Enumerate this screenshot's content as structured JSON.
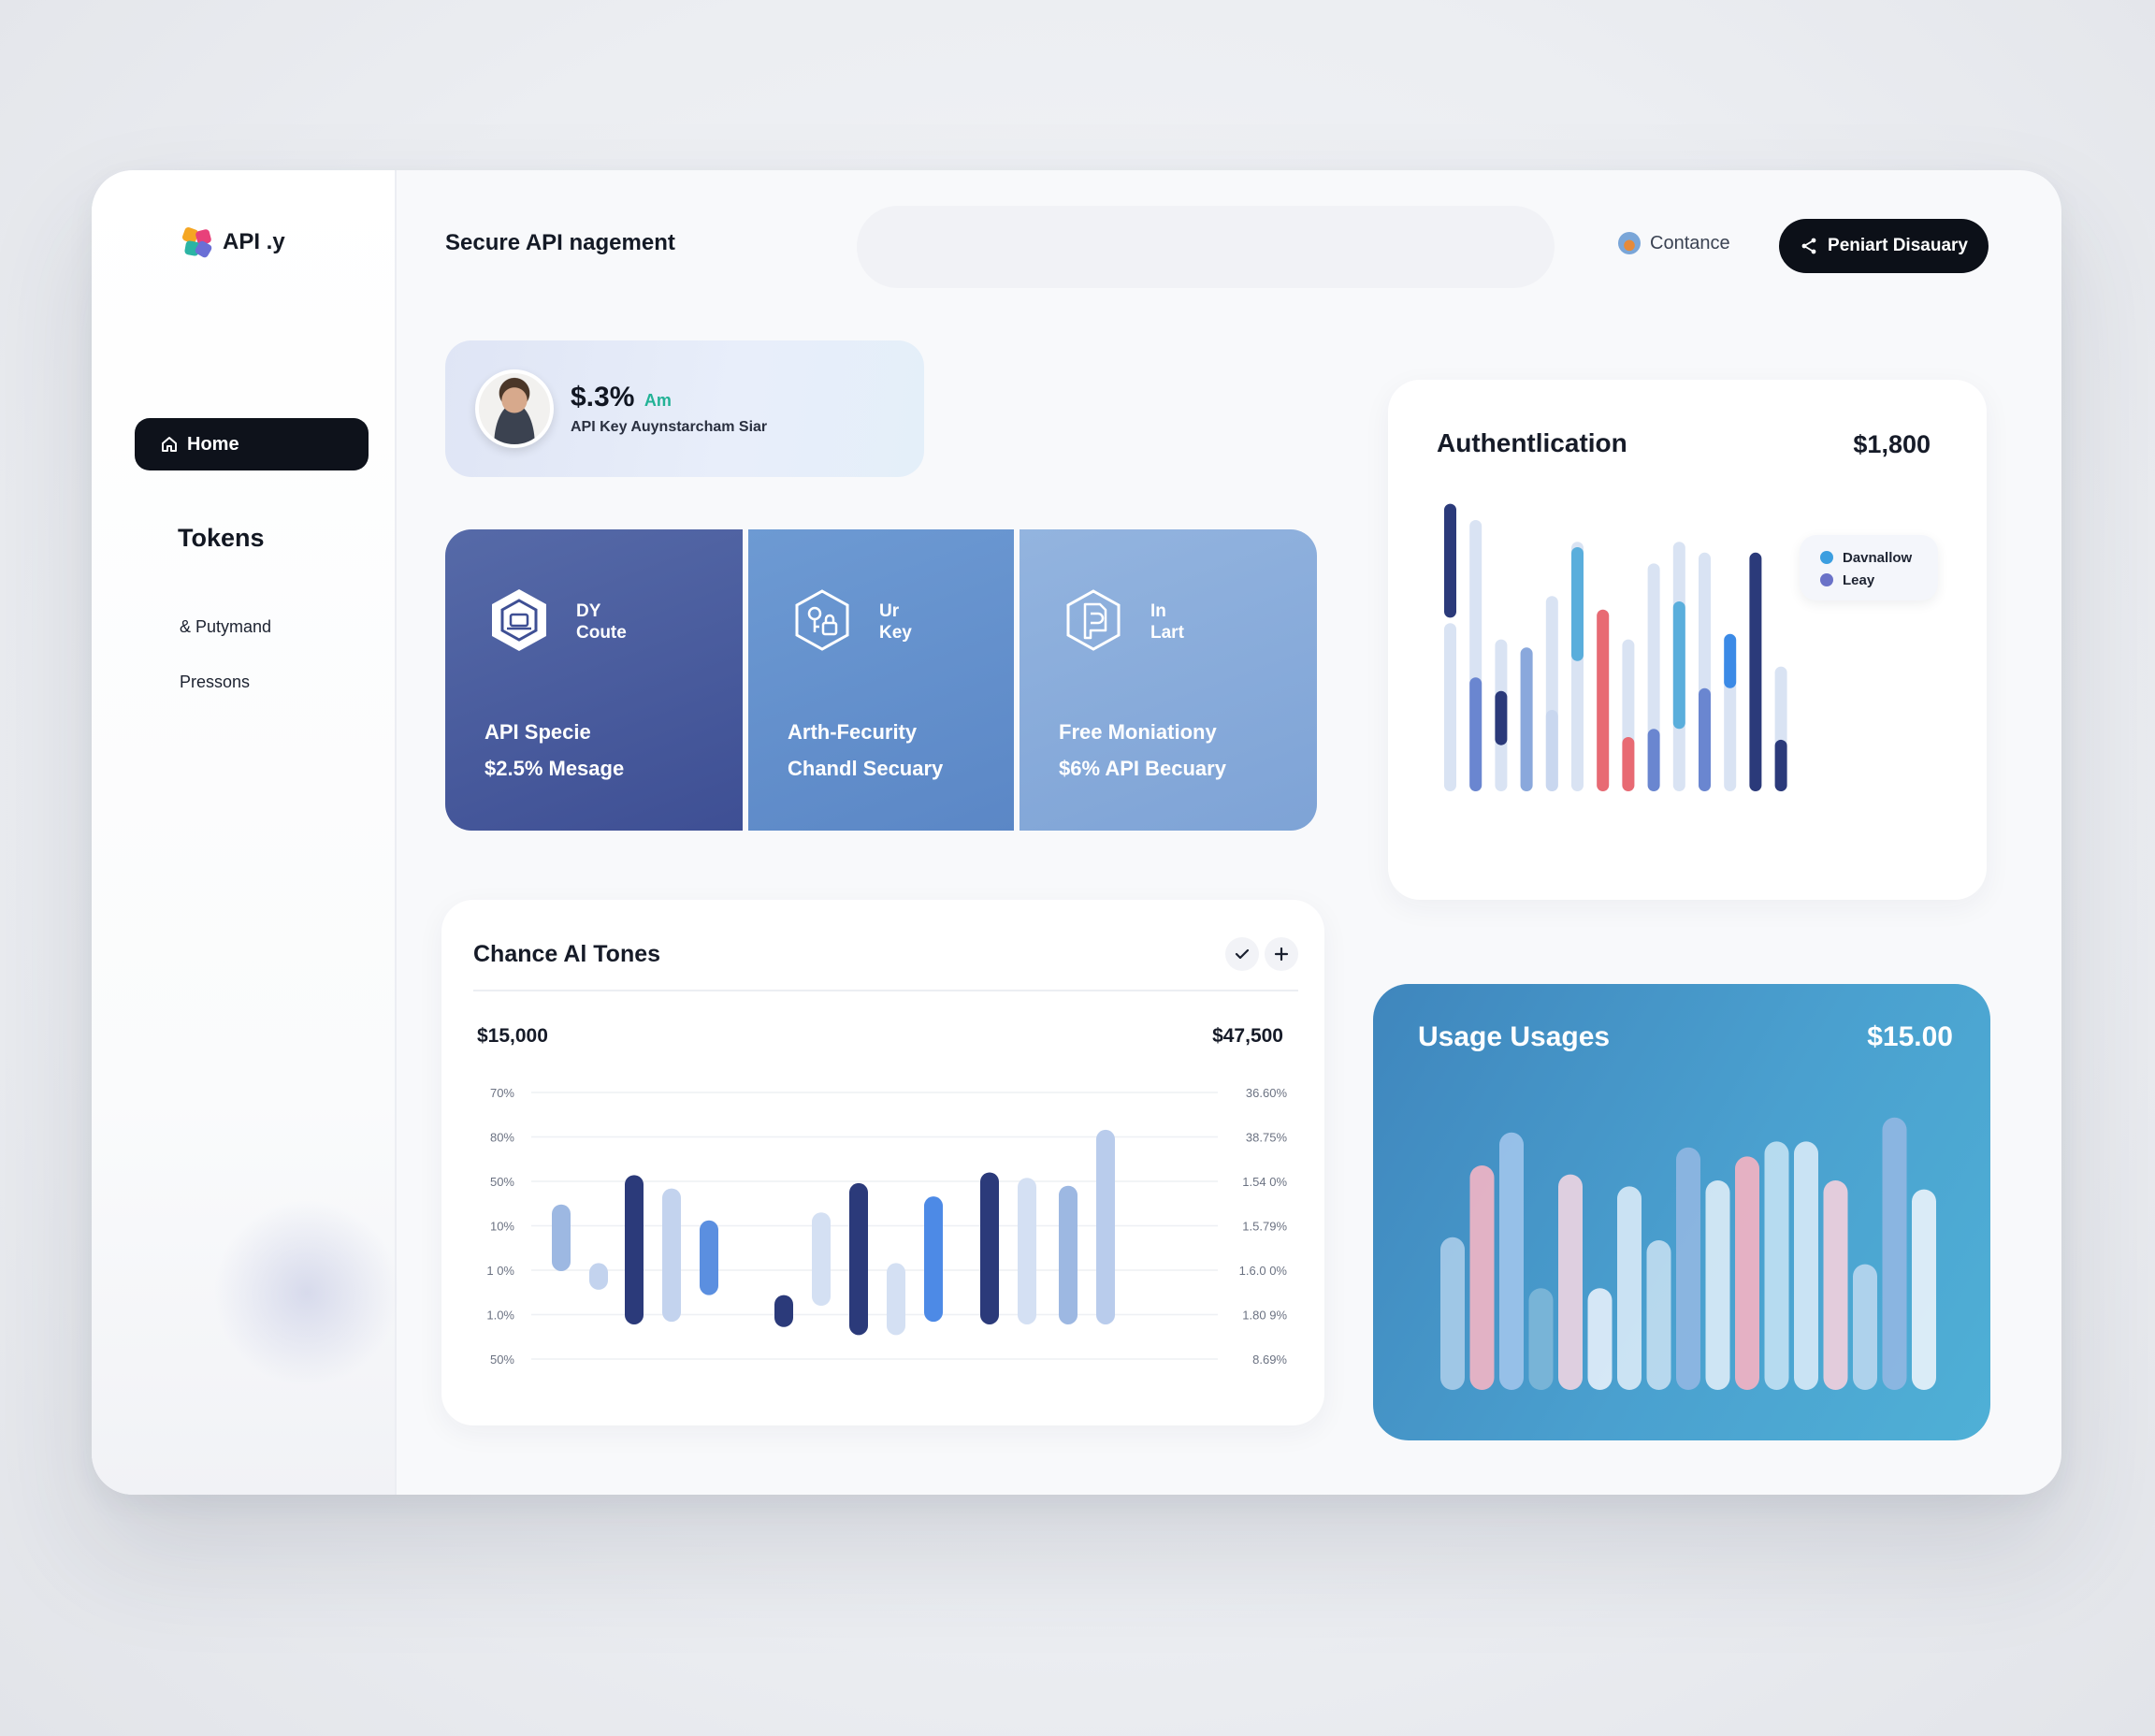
{
  "app": {
    "name": "API .y"
  },
  "header": {
    "title": "Secure API nagement",
    "search_placeholder": "",
    "contact_label": "Contance",
    "cta_label": "Peniart Disauary"
  },
  "sidebar": {
    "home_label": "Home",
    "section_label": "Tokens",
    "items": [
      {
        "label": "& Putymand"
      },
      {
        "label": "Pressons"
      }
    ]
  },
  "profile": {
    "stat": "$.3%",
    "stat_tag": "Am",
    "subtitle": "API Key Auynstarcham Siar"
  },
  "tiles": [
    {
      "kicker": "DY\nCoute",
      "title": "API Specie",
      "subtitle": "$2.5% Mesage",
      "icon": "shield-badge-icon"
    },
    {
      "kicker": "Ur\nKey",
      "title": "Arth-Fecurity",
      "subtitle": "Chandl Secuary",
      "icon": "key-lock-icon"
    },
    {
      "kicker": "In\nLart",
      "title": "Free Moniationy",
      "subtitle": "$6% API Becuary",
      "icon": "document-shield-icon"
    }
  ],
  "auth_card": {
    "title": "Authentlication",
    "value": "$1,800",
    "legend": [
      {
        "label": "Davnallow",
        "color": "#3b9ee0"
      },
      {
        "label": "Leay",
        "color": "#6a72c8"
      }
    ]
  },
  "tokens_card": {
    "title": "Chance Al Tones",
    "left_value": "$15,000",
    "right_value": "$47,500",
    "actions": [
      "check-icon",
      "plus-icon"
    ]
  },
  "usage_card": {
    "title": "Usage Usages",
    "value": "$15.00"
  },
  "chart_data": [
    {
      "type": "bar",
      "title": "Authentlication",
      "legend_position": "top-right",
      "series": [
        {
          "name": "Davnallow",
          "values": [
            0.62,
            1.0,
            0.56,
            0.53,
            0.72,
            0.92,
            0.67,
            0.56,
            0.84,
            0.92,
            0.88,
            0.49
          ]
        },
        {
          "name": "Leay",
          "values": [
            0.42,
            0.42,
            0.2,
            0.53,
            0.3,
            0.42,
            0.67,
            0.2,
            0.23,
            0.47,
            0.38,
            0.2
          ]
        }
      ],
      "colors": [
        "#2b3a7a",
        "#e86a73",
        "#5a9fd6",
        "#d9e3f3"
      ]
    },
    {
      "type": "bar",
      "title": "Chance Al Tones",
      "y_left_ticks": [
        "70%",
        "80%",
        "50%",
        "10%",
        "1 0%",
        "1.0%",
        "50%"
      ],
      "y_right_ticks": [
        "36.60%",
        "38.75%",
        "1.54 0%",
        "1.5.79%",
        "1.6.0 0%",
        "1.80 9%",
        "8.69%"
      ],
      "bars": [
        {
          "low": 0.33,
          "high": 0.58,
          "color": "#9db8e2"
        },
        {
          "low": 0.26,
          "high": 0.36,
          "color": "#c3d3ee"
        },
        {
          "low": 0.13,
          "high": 0.69,
          "color": "#2b3a7a"
        },
        {
          "low": 0.14,
          "high": 0.64,
          "color": "#c3d3ee"
        },
        {
          "low": 0.24,
          "high": 0.52,
          "color": "#5b8fe0"
        },
        {
          "low": 0.12,
          "high": 0.24,
          "color": "#2b3a7a"
        },
        {
          "low": 0.2,
          "high": 0.55,
          "color": "#d4e0f3"
        },
        {
          "low": 0.09,
          "high": 0.66,
          "color": "#2b3a7a"
        },
        {
          "low": 0.09,
          "high": 0.36,
          "color": "#d4e0f3"
        },
        {
          "low": 0.14,
          "high": 0.61,
          "color": "#4d8ae6"
        },
        {
          "low": 0.13,
          "high": 0.7,
          "color": "#2b3a7a"
        },
        {
          "low": 0.13,
          "high": 0.68,
          "color": "#d4e0f3"
        },
        {
          "low": 0.13,
          "high": 0.65,
          "color": "#9db8e2"
        },
        {
          "low": 0.13,
          "high": 0.86,
          "color": "#b9ccec"
        }
      ]
    },
    {
      "type": "bar",
      "title": "Usage Usages",
      "values": [
        0.51,
        0.75,
        0.86,
        0.34,
        0.72,
        0.34,
        0.68,
        0.5,
        0.81,
        0.7,
        0.78,
        0.83,
        0.83,
        0.7,
        0.42,
        0.91,
        0.67
      ],
      "colors": [
        "#a7cbe8",
        "#f0b4c4",
        "#9dc3ea",
        "#7db6d8",
        "#ecd4e2",
        "#e2eefa",
        "#d6e8f6",
        "#c0dcf0",
        "#8fb6e2",
        "#d9eaf6",
        "#f2b2c2",
        "#bfe0f2",
        "#d4e8f6",
        "#f0cfdc",
        "#b6d6ee",
        "#8fb6e2",
        "#e6f1fa"
      ]
    }
  ]
}
